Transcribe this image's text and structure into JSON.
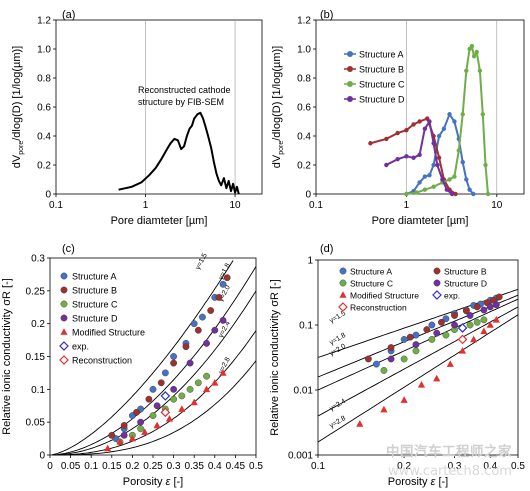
{
  "chart_data": [
    {
      "panel": "(a)",
      "type": "line",
      "ylabel_pre": "dV",
      "ylabel_sub": "pore",
      "ylabel_post": "/dlog(D) [1/log(µm)]",
      "xlabel": "Pore diamteter [µm]",
      "xscale": "log",
      "xlim": [
        0.1,
        20
      ],
      "ylim": [
        0,
        1.2
      ],
      "xticks": [
        0.1,
        1,
        10
      ],
      "xtick_labels": [
        "0.1",
        "1",
        "10"
      ],
      "yticks": [
        0,
        0.2,
        0.4,
        0.6,
        0.8,
        1.0,
        1.2
      ],
      "ytick_labels": [
        "0",
        "0.2",
        "0.4",
        "0.6",
        "0.8",
        "1.0",
        "1.2"
      ],
      "annotation": [
        "Reconstructed cathode",
        "structure by FIB-SEM"
      ],
      "series": [
        {
          "color": "#000000",
          "x": [
            0.5,
            0.7,
            0.9,
            1.1,
            1.3,
            1.5,
            1.7,
            1.9,
            2.1,
            2.3,
            2.5,
            2.7,
            2.9,
            3.1,
            3.3,
            3.5,
            3.8,
            4.1,
            4.4,
            4.7,
            5.0,
            5.4,
            5.8,
            6.2,
            6.6,
            7.0,
            7.5,
            8.0,
            8.5,
            9.0,
            9.5,
            10.0,
            10.5,
            11.0
          ],
          "y": [
            0.03,
            0.05,
            0.08,
            0.13,
            0.18,
            0.24,
            0.3,
            0.35,
            0.38,
            0.37,
            0.31,
            0.33,
            0.4,
            0.45,
            0.47,
            0.52,
            0.55,
            0.56,
            0.52,
            0.46,
            0.4,
            0.32,
            0.22,
            0.14,
            0.09,
            0.06,
            0.11,
            0.04,
            0.09,
            0.02,
            0.07,
            0.01,
            0.05,
            0.0
          ]
        }
      ]
    },
    {
      "panel": "(b)",
      "type": "line",
      "ylabel_pre": "dV",
      "ylabel_sub": "pore",
      "ylabel_post": "/dlog(D) [1/log(µm)]",
      "xlabel": "Pore diamteter [µm]",
      "xscale": "log",
      "xlim": [
        0.1,
        20
      ],
      "ylim": [
        0,
        1.2
      ],
      "xticks": [
        0.1,
        1,
        10
      ],
      "xtick_labels": [
        "0.1",
        "1",
        "10"
      ],
      "yticks": [
        0,
        0.2,
        0.4,
        0.6,
        0.8,
        1.0,
        1.2
      ],
      "ytick_labels": [
        "0",
        "0.2",
        "0.4",
        "0.6",
        "0.8",
        "1.0",
        "1.2"
      ],
      "legend": "top-left",
      "series": [
        {
          "name": "Structure A",
          "color": "#4472c4",
          "x": [
            1.0,
            1.2,
            1.4,
            1.6,
            1.8,
            2.0,
            2.3,
            2.6,
            3.0,
            3.4,
            3.8,
            4.2,
            4.6,
            5.0,
            5.5
          ],
          "y": [
            0.0,
            0.02,
            0.08,
            0.12,
            0.13,
            0.2,
            0.4,
            0.45,
            0.55,
            0.5,
            0.38,
            0.22,
            0.1,
            0.03,
            0.0
          ]
        },
        {
          "name": "Structure B",
          "color": "#9e3030",
          "x": [
            0.4,
            0.6,
            0.8,
            1.0,
            1.2,
            1.4,
            1.7,
            2.0,
            2.3,
            2.6,
            3.0,
            3.5
          ],
          "y": [
            0.35,
            0.38,
            0.42,
            0.44,
            0.48,
            0.5,
            0.52,
            0.4,
            0.25,
            0.1,
            0.03,
            0.0
          ]
        },
        {
          "name": "Structure C",
          "color": "#70ad47",
          "x": [
            1.0,
            1.3,
            1.6,
            2.0,
            2.5,
            3.0,
            3.4,
            3.8,
            4.2,
            4.6,
            5.0,
            5.3,
            5.6,
            6.0,
            6.5,
            7.0,
            7.5,
            8.0
          ],
          "y": [
            0.0,
            0.01,
            0.03,
            0.05,
            0.08,
            0.1,
            0.12,
            0.3,
            0.55,
            0.85,
            1.0,
            1.02,
            0.95,
            0.98,
            0.85,
            0.55,
            0.2,
            0.0
          ]
        },
        {
          "name": "Structure D",
          "color": "#7030a0",
          "x": [
            0.6,
            0.8,
            1.0,
            1.2,
            1.4,
            1.6,
            1.8,
            2.0,
            2.2,
            2.5,
            2.8,
            3.2
          ],
          "y": [
            0.2,
            0.24,
            0.26,
            0.25,
            0.27,
            0.45,
            0.5,
            0.35,
            0.2,
            0.1,
            0.03,
            0.0
          ]
        }
      ]
    },
    {
      "panel": "(c)",
      "type": "scatter",
      "ylabel": "Relative ionic conductivity σR [-]",
      "xlabel_text": "Porosity ",
      "xlabel_sym": "ε",
      "xlabel_unit": " [-]",
      "xlim": [
        0,
        0.5
      ],
      "ylim": [
        0,
        0.3
      ],
      "xticks": [
        0,
        0.05,
        0.1,
        0.15,
        0.2,
        0.25,
        0.3,
        0.35,
        0.4,
        0.45,
        0.5
      ],
      "xtick_labels": [
        "0",
        "0.05",
        "0.1",
        "0.15",
        "0.2",
        "0.25",
        "0.3",
        "0.35",
        "0.4",
        "0.45",
        "0.5"
      ],
      "yticks": [
        0,
        0.05,
        0.1,
        0.15,
        0.2,
        0.25,
        0.3
      ],
      "ytick_labels": [
        "0",
        "0.05",
        "0.1",
        "0.15",
        "0.2",
        "0.25",
        "0.3"
      ],
      "legend": "top-left",
      "curves": [
        {
          "label": "γ=1.5",
          "gamma": 1.5
        },
        {
          "label": "γ=1.8",
          "gamma": 1.8
        },
        {
          "label": "γ=2.0",
          "gamma": 2.0
        },
        {
          "label": "γ=2.4",
          "gamma": 2.4
        },
        {
          "label": "γ=2.8",
          "gamma": 2.8
        }
      ],
      "series": [
        {
          "name": "Structure A",
          "color": "#4472c4",
          "marker": "circle",
          "x": [
            0.16,
            0.18,
            0.2,
            0.22,
            0.25,
            0.28,
            0.3,
            0.33,
            0.35,
            0.37,
            0.4,
            0.42
          ],
          "y": [
            0.025,
            0.04,
            0.06,
            0.07,
            0.1,
            0.125,
            0.15,
            0.17,
            0.2,
            0.21,
            0.24,
            0.26
          ]
        },
        {
          "name": "Structure B",
          "color": "#9e3030",
          "marker": "circle",
          "x": [
            0.15,
            0.18,
            0.21,
            0.24,
            0.27,
            0.3,
            0.33,
            0.36,
            0.39,
            0.41,
            0.43
          ],
          "y": [
            0.03,
            0.045,
            0.065,
            0.085,
            0.11,
            0.14,
            0.165,
            0.19,
            0.22,
            0.24,
            0.27
          ]
        },
        {
          "name": "Structure C",
          "color": "#70ad47",
          "marker": "circle",
          "x": [
            0.17,
            0.2,
            0.22,
            0.25,
            0.28,
            0.3,
            0.32,
            0.34,
            0.36,
            0.38
          ],
          "y": [
            0.02,
            0.03,
            0.04,
            0.06,
            0.07,
            0.085,
            0.09,
            0.1,
            0.11,
            0.12
          ]
        },
        {
          "name": "Structure D",
          "color": "#7030a0",
          "marker": "circle",
          "x": [
            0.18,
            0.22,
            0.26,
            0.3,
            0.34,
            0.38,
            0.4,
            0.42
          ],
          "y": [
            0.03,
            0.05,
            0.075,
            0.1,
            0.14,
            0.17,
            0.19,
            0.205
          ]
        },
        {
          "name": "Modified Structure",
          "color": "#e03030",
          "marker": "triangle",
          "x": [
            0.14,
            0.17,
            0.2,
            0.23,
            0.26,
            0.29,
            0.32,
            0.35,
            0.38,
            0.4,
            0.42
          ],
          "y": [
            0.01,
            0.02,
            0.025,
            0.035,
            0.045,
            0.055,
            0.07,
            0.08,
            0.1,
            0.11,
            0.125
          ]
        },
        {
          "name": "exp.",
          "color": "#2e2ed0",
          "marker": "diamond-open",
          "x": [
            0.28
          ],
          "y": [
            0.09
          ]
        },
        {
          "name": "Reconstruction",
          "color": "#e03030",
          "marker": "diamond-open",
          "x": [
            0.28
          ],
          "y": [
            0.065
          ]
        }
      ]
    },
    {
      "panel": "(d)",
      "type": "scatter",
      "ylabel": "Relative ionic conductivity σR [-]",
      "xlabel_text": "Porosity ",
      "xlabel_sym": "ε",
      "xlabel_unit": " [-]",
      "xscale": "log",
      "yscale": "log",
      "xlim": [
        0.1,
        0.5
      ],
      "ylim": [
        0.001,
        1
      ],
      "xticks": [
        0.1,
        0.2,
        0.3,
        0.4,
        0.5
      ],
      "xtick_labels": [
        "0.1",
        "0.2",
        "0.3",
        "0.4",
        "0.5"
      ],
      "yticks": [
        0.001,
        0.01,
        0.1,
        1
      ],
      "ytick_labels": [
        "0.001",
        "0.01",
        "0.1",
        "1"
      ],
      "legend": "top",
      "curves": [
        {
          "label": "γ=1.5",
          "gamma": 1.5
        },
        {
          "label": "γ=1.8",
          "gamma": 1.8
        },
        {
          "label": "γ=2.0",
          "gamma": 2.0
        },
        {
          "label": "γ=2.4",
          "gamma": 2.4
        },
        {
          "label": "γ=2.8",
          "gamma": 2.8
        }
      ],
      "series": [
        {
          "name": "Structure A",
          "color": "#4472c4",
          "marker": "circle",
          "x": [
            0.16,
            0.18,
            0.2,
            0.22,
            0.25,
            0.28,
            0.3,
            0.33,
            0.35,
            0.37,
            0.4,
            0.42
          ],
          "y": [
            0.025,
            0.04,
            0.06,
            0.07,
            0.1,
            0.125,
            0.15,
            0.17,
            0.2,
            0.21,
            0.24,
            0.26
          ]
        },
        {
          "name": "Structure B",
          "color": "#9e3030",
          "marker": "circle",
          "x": [
            0.15,
            0.18,
            0.21,
            0.24,
            0.27,
            0.3,
            0.33,
            0.36,
            0.39,
            0.41,
            0.43
          ],
          "y": [
            0.03,
            0.045,
            0.065,
            0.085,
            0.11,
            0.14,
            0.165,
            0.19,
            0.22,
            0.24,
            0.27
          ]
        },
        {
          "name": "Structure C",
          "color": "#70ad47",
          "marker": "circle",
          "x": [
            0.17,
            0.2,
            0.22,
            0.25,
            0.28,
            0.3,
            0.32,
            0.34,
            0.36,
            0.38
          ],
          "y": [
            0.02,
            0.03,
            0.04,
            0.06,
            0.07,
            0.085,
            0.09,
            0.1,
            0.11,
            0.12
          ]
        },
        {
          "name": "Structure D",
          "color": "#7030a0",
          "marker": "circle",
          "x": [
            0.18,
            0.22,
            0.26,
            0.3,
            0.34,
            0.38,
            0.4,
            0.42
          ],
          "y": [
            0.03,
            0.05,
            0.075,
            0.1,
            0.14,
            0.17,
            0.19,
            0.205
          ]
        },
        {
          "name": "Modified Structure",
          "color": "#e03030",
          "marker": "triangle",
          "x": [
            0.14,
            0.17,
            0.2,
            0.23,
            0.26,
            0.29,
            0.32,
            0.35,
            0.38,
            0.4,
            0.42
          ],
          "y": [
            0.003,
            0.005,
            0.007,
            0.012,
            0.015,
            0.025,
            0.04,
            0.06,
            0.08,
            0.1,
            0.12
          ]
        },
        {
          "name": "exp.",
          "color": "#2e2ed0",
          "marker": "diamond-open",
          "x": [
            0.32
          ],
          "y": [
            0.09
          ]
        },
        {
          "name": "Reconstruction",
          "color": "#e03030",
          "marker": "diamond-open",
          "x": [
            0.32
          ],
          "y": [
            0.06
          ]
        }
      ]
    }
  ],
  "watermark": {
    "line1": "中国汽车工程师之家",
    "line2": "www.cartech8.com"
  }
}
